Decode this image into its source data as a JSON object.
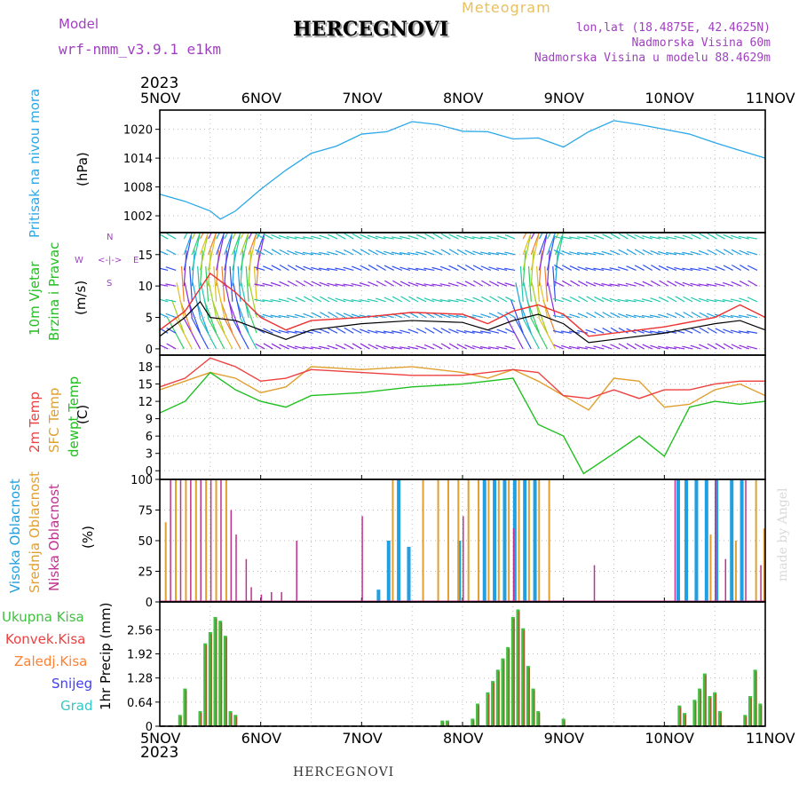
{
  "header": {
    "model_label": "Model",
    "model_name": "wrf-nmm_v3.9.1  e1km",
    "title": "HERCEGNOVI",
    "meteogram_label": "Meteogram",
    "coords": "lon,lat (18.4875E, 42.4625N)",
    "altitude": "Nadmorska Visina 60m",
    "model_altitude": "Nadmorska Visina u modelu 88.4629m",
    "year_top": "2023",
    "year_bottom": "2023",
    "footer_title": "HERCEGNOVI",
    "watermark": "made by Angel"
  },
  "colors": {
    "pressure": "#2aa8e8",
    "wind_speed": "#000000",
    "gust": "#ee3030",
    "temp2m": "#ee4040",
    "sfc_temp": "#e0a030",
    "dewpt": "#20c020",
    "cloud_high": "#20a0e0",
    "cloud_mid": "#e0a030",
    "cloud_low": "#c03090",
    "precip_total": "#40c040",
    "precip_conv": "#ee4040",
    "precip_frz": "#ff8030",
    "snow": "#4040ee",
    "grad": "#30c8c8",
    "ylabel_purple": "#a040c0"
  },
  "chart_data": [
    {
      "type": "line",
      "panel": "pressure",
      "x_ticks": [
        "5NOV",
        "6NOV",
        "7NOV",
        "8NOV",
        "9NOV",
        "10NOV",
        "11NOV"
      ],
      "ylabel_main": "Pritisak na nivou mora",
      "ylabel_unit": "(hPa)",
      "yticks": [
        "1002",
        "1008",
        "1014",
        "1020"
      ],
      "ylim": [
        998.5,
        1024
      ],
      "x": [
        0,
        0.25,
        0.5,
        0.6,
        0.75,
        1,
        1.25,
        1.5,
        1.75,
        2,
        2.25,
        2.5,
        2.75,
        3,
        3.25,
        3.5,
        3.75,
        4,
        4.25,
        4.5,
        4.75,
        5,
        5.25,
        5.5,
        5.75,
        6
      ],
      "values": [
        1006.5,
        1005,
        1003,
        1001.3,
        1003,
        1007.5,
        1011.5,
        1015,
        1016.5,
        1019,
        1019.5,
        1021.6,
        1021,
        1019.6,
        1019.5,
        1018,
        1018.2,
        1016.3,
        1019.5,
        1021.8,
        1021,
        1020,
        1019,
        1017.2,
        1015.6,
        1014
      ]
    },
    {
      "type": "line",
      "panel": "wind",
      "ylabel_main": "10m Vjetar",
      "ylabel_sub": "Brzina i Pravac",
      "ylabel_unit": "(m/s)",
      "compass_n": "N",
      "compass_s": "S",
      "compass_w": "W",
      "compass_e": "E",
      "yticks": [
        "0",
        "5",
        "10",
        "15"
      ],
      "ylim": [
        -1,
        18.5
      ],
      "series": [
        {
          "name": "speed",
          "x": [
            0,
            0.25,
            0.4,
            0.5,
            0.75,
            1,
            1.25,
            1.5,
            2,
            2.5,
            3,
            3.25,
            3.5,
            3.75,
            4,
            4.25,
            4.5,
            5,
            5.5,
            5.75,
            6
          ],
          "values": [
            2,
            5,
            7.5,
            5,
            4.5,
            3,
            1.5,
            3,
            4,
            4.5,
            4.2,
            3,
            4.5,
            5.5,
            4,
            1,
            1.5,
            2.5,
            4,
            4.5,
            3
          ]
        },
        {
          "name": "gust",
          "x": [
            0,
            0.25,
            0.5,
            0.75,
            1,
            1.25,
            1.5,
            2,
            2.5,
            3,
            3.25,
            3.5,
            3.75,
            4,
            4.25,
            4.5,
            5,
            5.5,
            5.75,
            6
          ],
          "values": [
            3,
            6,
            12,
            9,
            5,
            3,
            4.5,
            5,
            5.8,
            5.5,
            4,
            6,
            7,
            5.5,
            2,
            2.5,
            3.5,
            5,
            7,
            5
          ]
        }
      ]
    },
    {
      "type": "line",
      "panel": "temperature",
      "ylabel_a": "2m Temp",
      "ylabel_b": "SFC Temp",
      "ylabel_c": "dewpt Temp",
      "ylabel_unit": "(C)",
      "yticks": [
        "0",
        "3",
        "6",
        "9",
        "12",
        "15",
        "18"
      ],
      "ylim": [
        -1.5,
        20
      ],
      "series": [
        {
          "name": "2m Temp",
          "x": [
            0,
            0.25,
            0.5,
            0.75,
            1,
            1.25,
            1.5,
            2,
            2.5,
            3,
            3.25,
            3.5,
            3.75,
            4,
            4.25,
            4.5,
            4.75,
            5,
            5.25,
            5.5,
            5.75,
            6
          ],
          "values": [
            14.5,
            16,
            19.5,
            18,
            15.5,
            16,
            17.5,
            17,
            16.5,
            16.5,
            17,
            17.5,
            17,
            13,
            12.5,
            14,
            12.5,
            14,
            14,
            15,
            15.5,
            15.5
          ]
        },
        {
          "name": "SFC Temp",
          "x": [
            0,
            0.25,
            0.5,
            0.75,
            1,
            1.25,
            1.5,
            2,
            2.5,
            3,
            3.25,
            3.5,
            3.75,
            4,
            4.25,
            4.5,
            4.75,
            5,
            5.25,
            5.5,
            5.75,
            6
          ],
          "values": [
            14,
            15.5,
            17,
            16,
            13.5,
            14.5,
            18,
            17.5,
            18,
            17,
            16,
            17.5,
            15.5,
            13,
            10.5,
            16,
            15.5,
            11,
            11.5,
            14,
            15,
            13
          ]
        },
        {
          "name": "dewpt Temp",
          "x": [
            0,
            0.25,
            0.5,
            0.75,
            1,
            1.25,
            1.5,
            2,
            2.5,
            3,
            3.25,
            3.5,
            3.75,
            4,
            4.2,
            4.5,
            4.75,
            5,
            5.25,
            5.5,
            5.75,
            6
          ],
          "values": [
            10,
            12,
            17,
            14,
            12,
            11,
            13,
            13.5,
            14.5,
            15,
            15.5,
            16,
            8,
            6,
            -0.5,
            3,
            6,
            2.5,
            11,
            12,
            11.5,
            12
          ]
        }
      ]
    },
    {
      "type": "bar",
      "panel": "clouds",
      "ylabel_a": "Visoka Oblacnost",
      "ylabel_b": "Srednja Oblacnost",
      "ylabel_c": "Niska  Oblacnost",
      "ylabel_unit": "(%)",
      "yticks": [
        "0",
        "25",
        "50",
        "75",
        "100"
      ],
      "ylim": [
        0,
        100
      ],
      "series": [
        {
          "name": "low",
          "x": [
            0.1,
            0.2,
            0.3,
            0.4,
            0.5,
            0.6,
            0.7,
            0.75,
            0.85,
            0.9,
            1.0,
            1.1,
            1.2,
            1.35,
            2.0,
            3.0,
            3.5,
            4.3,
            5.1,
            5.5,
            5.6,
            5.8,
            5.95
          ],
          "values": [
            100,
            100,
            100,
            100,
            100,
            100,
            75,
            55,
            35,
            12,
            6,
            8,
            8,
            50,
            70,
            70,
            60,
            30,
            100,
            100,
            35,
            100,
            30
          ]
        },
        {
          "name": "mid",
          "x": [
            0.05,
            0.15,
            0.25,
            0.35,
            0.45,
            0.55,
            0.65,
            2.3,
            2.6,
            2.75,
            2.85,
            2.95,
            3.05,
            3.15,
            3.25,
            3.35,
            3.45,
            3.55,
            3.65,
            3.75,
            3.85,
            5.45,
            5.7,
            5.9,
            5.98
          ],
          "values": [
            65,
            100,
            100,
            100,
            100,
            100,
            100,
            100,
            100,
            100,
            100,
            100,
            100,
            100,
            100,
            100,
            100,
            100,
            100,
            100,
            100,
            55,
            50,
            100,
            60
          ]
        },
        {
          "name": "high",
          "x": [
            2.15,
            2.25,
            2.35,
            2.45,
            2.95,
            3.2,
            3.3,
            3.4,
            3.5,
            3.6,
            3.7,
            5.12,
            5.2,
            5.3,
            5.4,
            5.5,
            5.65,
            5.75
          ],
          "values": [
            10,
            50,
            100,
            45,
            50,
            100,
            100,
            100,
            100,
            100,
            100,
            100,
            100,
            100,
            100,
            100,
            100,
            100
          ]
        }
      ]
    },
    {
      "type": "bar",
      "panel": "precip",
      "ylabel_unit": "1hr Precip  (mm)",
      "legend": [
        "Ukupna  Kisa",
        "Konvek.Kisa",
        "Zaledj.Kisa",
        "Snijeg",
        "Grad"
      ],
      "yticks": [
        "0",
        "0.64",
        "1.28",
        "1.92",
        "2.56"
      ],
      "ylim": [
        0,
        3.3
      ],
      "series": [
        {
          "name": "total",
          "x": [
            0.2,
            0.25,
            0.4,
            0.45,
            0.5,
            0.55,
            0.6,
            0.65,
            0.7,
            0.75,
            2.8,
            2.85,
            3.1,
            3.15,
            3.25,
            3.3,
            3.35,
            3.4,
            3.45,
            3.5,
            3.55,
            3.6,
            3.65,
            3.7,
            3.75,
            4.0,
            5.15,
            5.2,
            5.3,
            5.35,
            5.4,
            5.45,
            5.5,
            5.55,
            5.8,
            5.85,
            5.9,
            5.95
          ],
          "values": [
            0.3,
            1.0,
            0.4,
            2.2,
            2.5,
            2.9,
            2.8,
            2.4,
            0.4,
            0.3,
            0.15,
            0.15,
            0.2,
            0.6,
            0.9,
            1.2,
            1.5,
            1.8,
            2.1,
            2.9,
            3.1,
            2.6,
            1.6,
            1.0,
            0.4,
            0.2,
            0.55,
            0.35,
            0.7,
            1.0,
            1.4,
            0.8,
            0.9,
            0.4,
            0.3,
            0.8,
            1.5,
            0.6
          ]
        }
      ]
    }
  ]
}
